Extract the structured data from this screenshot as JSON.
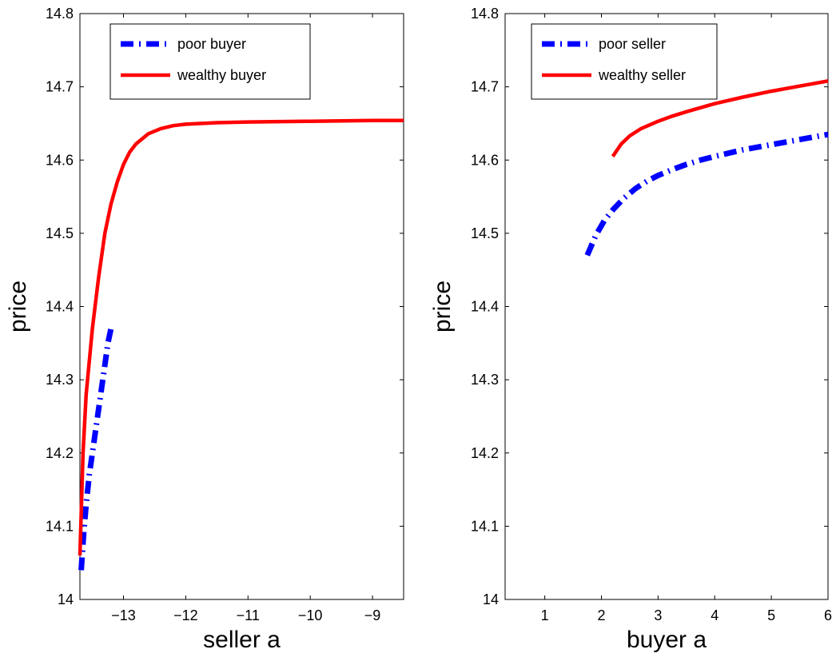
{
  "chart_data": [
    {
      "type": "line",
      "xlabel": "seller a",
      "ylabel": "price",
      "xlim": [
        -13.7,
        -8.5
      ],
      "ylim": [
        14.0,
        14.8
      ],
      "xticks": [
        -13,
        -12,
        -11,
        -10,
        -9
      ],
      "xtick_labels": [
        "−13",
        "−12",
        "−11",
        "−10",
        "−9"
      ],
      "yticks": [
        14.0,
        14.1,
        14.2,
        14.3,
        14.4,
        14.5,
        14.6,
        14.7,
        14.8
      ],
      "ytick_labels": [
        "14",
        "14.1",
        "14.2",
        "14.3",
        "14.4",
        "14.5",
        "14.6",
        "14.7",
        "14.8"
      ],
      "grid": false,
      "legend_position": "top-left",
      "series": [
        {
          "name": "poor buyer",
          "color": "#0000ff",
          "style": "dash-dot",
          "x": [
            -13.68,
            -13.64,
            -13.6,
            -13.55,
            -13.5,
            -13.45,
            -13.4,
            -13.35,
            -13.3,
            -13.25,
            -13.2
          ],
          "y": [
            14.04,
            14.09,
            14.13,
            14.17,
            14.2,
            14.23,
            14.26,
            14.29,
            14.32,
            14.35,
            14.37
          ]
        },
        {
          "name": "wealthy buyer",
          "color": "#ff0000",
          "style": "solid",
          "x": [
            -13.7,
            -13.65,
            -13.6,
            -13.5,
            -13.4,
            -13.3,
            -13.2,
            -13.1,
            -13.0,
            -12.9,
            -12.8,
            -12.6,
            -12.4,
            -12.2,
            -12.0,
            -11.5,
            -11.0,
            -10.0,
            -9.0,
            -8.5
          ],
          "y": [
            14.06,
            14.2,
            14.28,
            14.37,
            14.44,
            14.5,
            14.54,
            14.57,
            14.594,
            14.611,
            14.622,
            14.636,
            14.643,
            14.647,
            14.649,
            14.651,
            14.652,
            14.653,
            14.654,
            14.654
          ]
        }
      ]
    },
    {
      "type": "line",
      "xlabel": "buyer a",
      "ylabel": "price",
      "xlim": [
        0.3,
        6.0
      ],
      "ylim": [
        14.0,
        14.8
      ],
      "xticks": [
        1,
        2,
        3,
        4,
        5,
        6
      ],
      "xtick_labels": [
        "1",
        "2",
        "3",
        "4",
        "5",
        "6"
      ],
      "yticks": [
        14.0,
        14.1,
        14.2,
        14.3,
        14.4,
        14.5,
        14.6,
        14.7,
        14.8
      ],
      "ytick_labels": [
        "14",
        "14.1",
        "14.2",
        "14.3",
        "14.4",
        "14.5",
        "14.6",
        "14.7",
        "14.8"
      ],
      "grid": false,
      "legend_position": "top-left",
      "series": [
        {
          "name": "poor seller",
          "color": "#0000ff",
          "style": "dash-dot",
          "x": [
            1.75,
            1.9,
            2.05,
            2.2,
            2.4,
            2.6,
            2.8,
            3.0,
            3.25,
            3.5,
            3.75,
            4.0,
            4.5,
            5.0,
            5.5,
            6.0
          ],
          "y": [
            14.47,
            14.497,
            14.517,
            14.532,
            14.548,
            14.561,
            14.571,
            14.579,
            14.587,
            14.594,
            14.6,
            14.605,
            14.614,
            14.621,
            14.628,
            14.635
          ]
        },
        {
          "name": "wealthy seller",
          "color": "#ff0000",
          "style": "solid",
          "x": [
            2.2,
            2.35,
            2.5,
            2.7,
            3.0,
            3.25,
            3.5,
            4.0,
            4.5,
            5.0,
            5.5,
            6.0
          ],
          "y": [
            14.605,
            14.622,
            14.633,
            14.643,
            14.653,
            14.66,
            14.666,
            14.677,
            14.686,
            14.694,
            14.701,
            14.708
          ]
        }
      ]
    }
  ]
}
